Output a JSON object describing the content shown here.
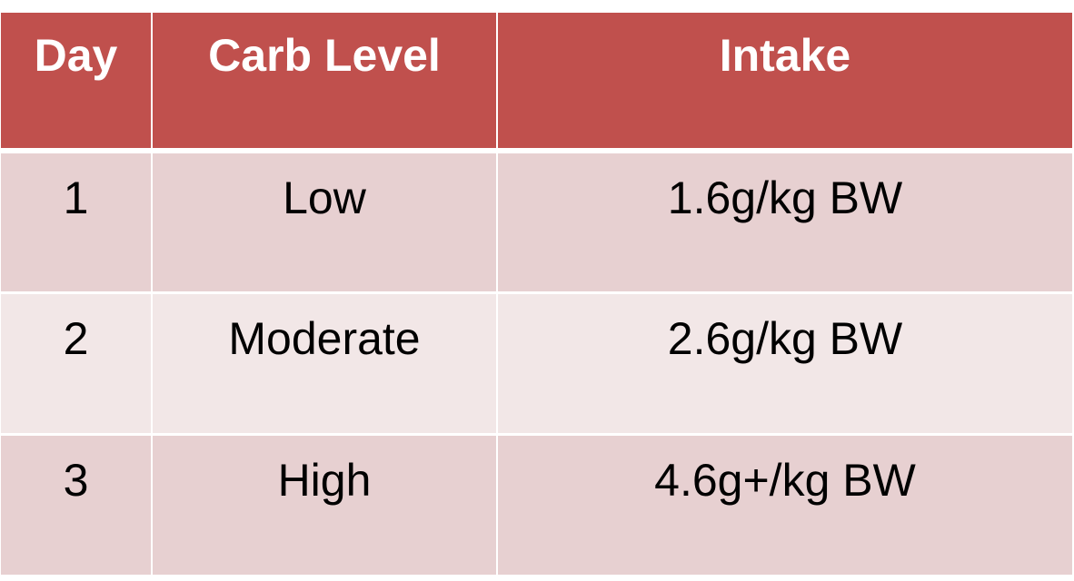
{
  "table": {
    "headers": [
      "Day",
      "Carb Level",
      "Intake"
    ],
    "rows": [
      [
        "1",
        "Low",
        "1.6g/kg BW"
      ],
      [
        "2",
        "Moderate",
        "2.6g/kg BW"
      ],
      [
        "3",
        "High",
        "4.6g+/kg BW"
      ]
    ]
  },
  "colors": {
    "header": "#c0504d",
    "row_odd": "#e7d0d1",
    "row_even": "#f2e7e7"
  }
}
